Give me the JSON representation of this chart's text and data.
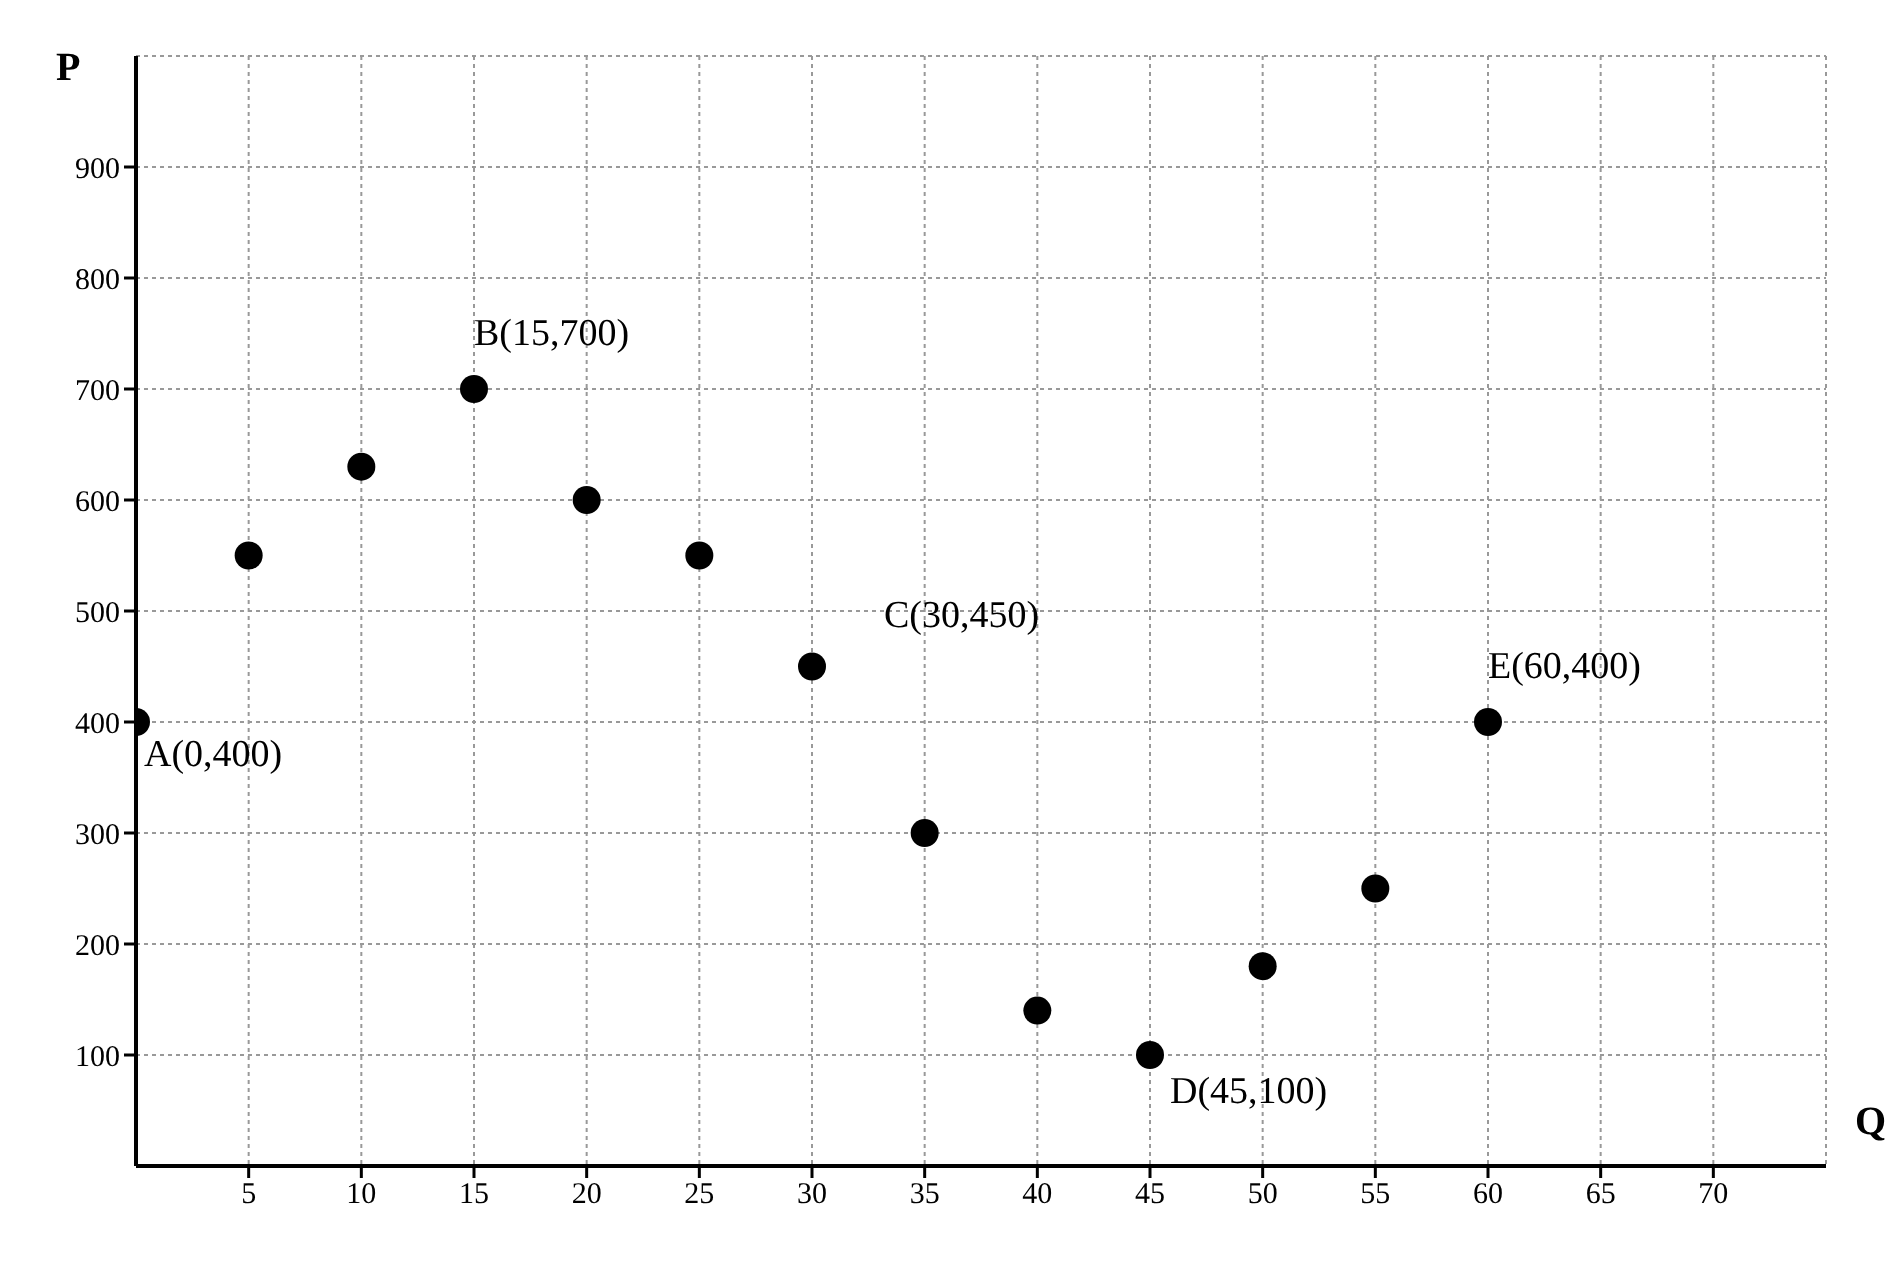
{
  "chart_data": {
    "type": "scatter",
    "xlabel": "Q",
    "ylabel": "P",
    "x": [
      0,
      5,
      10,
      15,
      20,
      25,
      30,
      35,
      40,
      45,
      50,
      55,
      60
    ],
    "series": [
      {
        "color": "#000000",
        "values": [
          400,
          550,
          630,
          700,
          600,
          550,
          450,
          300,
          140,
          100,
          180,
          250,
          400
        ]
      }
    ],
    "xlim": [
      0,
      75
    ],
    "ylim": [
      0,
      1000
    ],
    "xticks": [
      5,
      10,
      15,
      20,
      25,
      30,
      35,
      40,
      45,
      50,
      55,
      60,
      65,
      70
    ],
    "yticks": [
      100,
      200,
      300,
      400,
      500,
      600,
      700,
      800,
      900
    ],
    "grid": true,
    "legend": false,
    "marker": "circle",
    "annotations": [
      {
        "text": "A(0,400)",
        "x": 0,
        "y": 400
      },
      {
        "text": "B(15,700)",
        "x": 15,
        "y": 700
      },
      {
        "text": "C(30,450)",
        "x": 30,
        "y": 450
      },
      {
        "text": "D(45,100)",
        "x": 45,
        "y": 100
      },
      {
        "text": "E(60,400)",
        "x": 60,
        "y": 400
      }
    ]
  }
}
